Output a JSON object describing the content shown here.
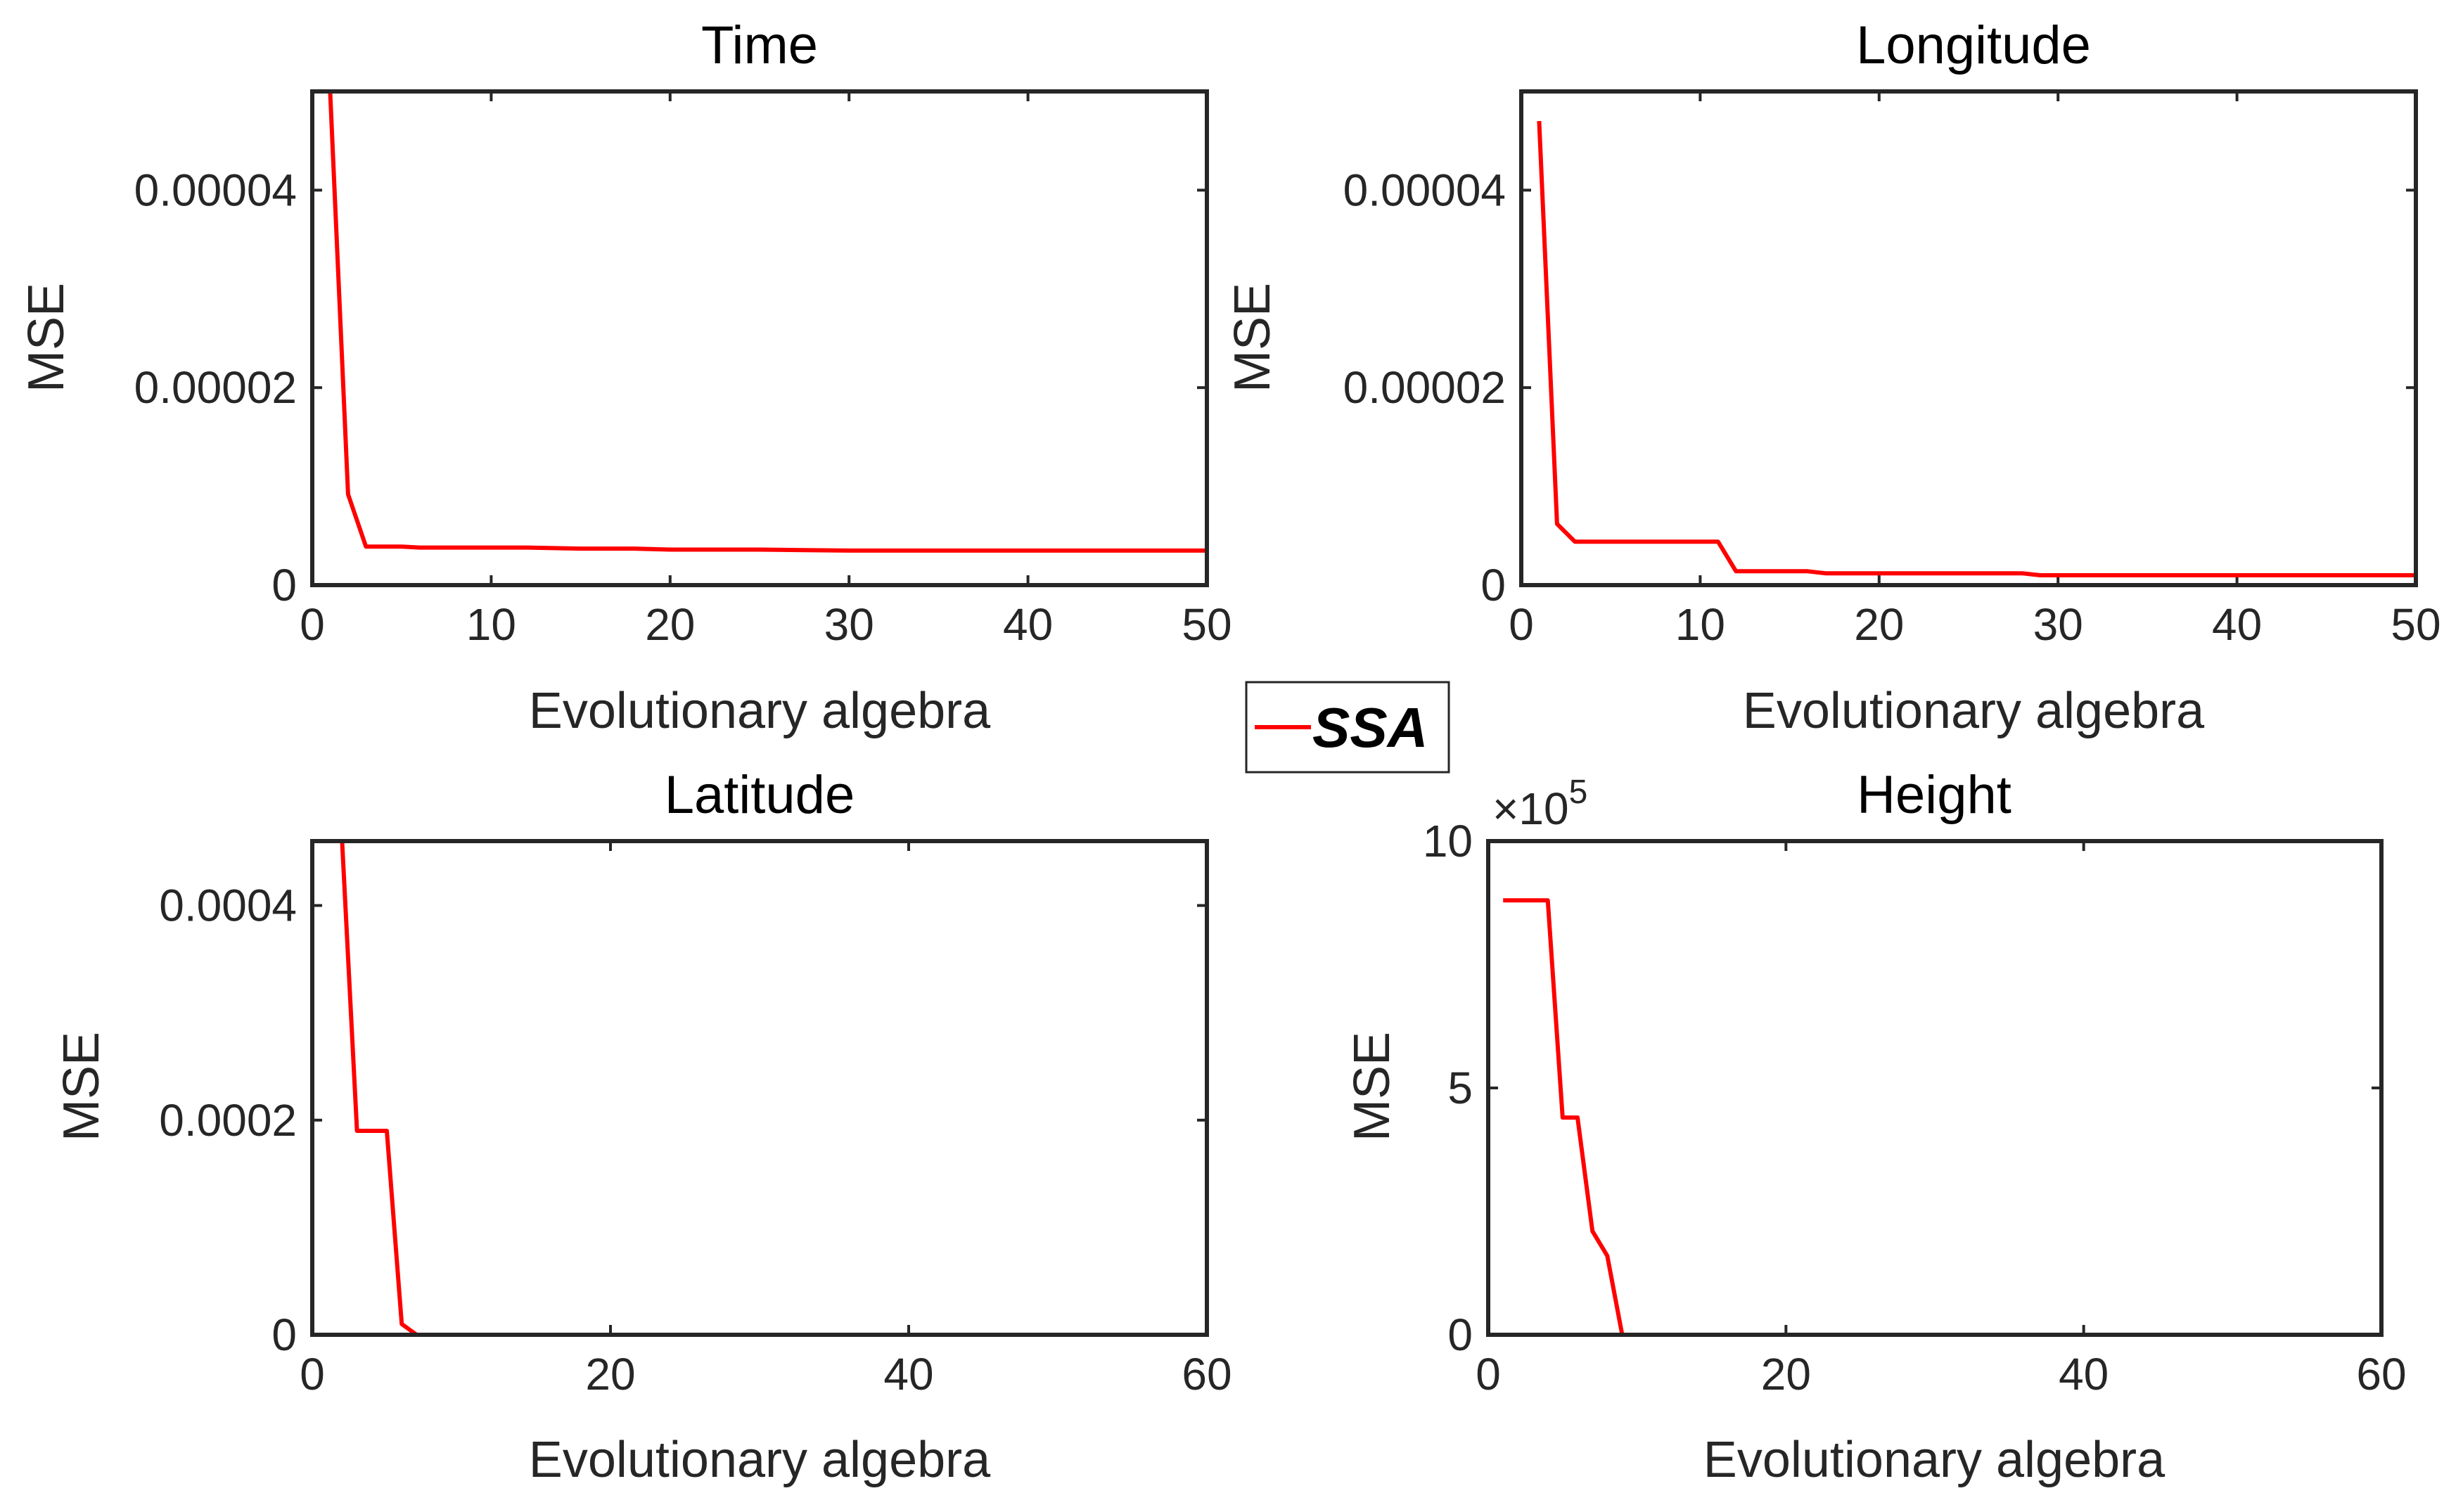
{
  "series_color": "#ff0000",
  "legend": {
    "label": "SSA"
  },
  "chart_data": [
    {
      "type": "line",
      "title": "Time",
      "xlabel": "Evolutionary algebra",
      "ylabel": "MSE",
      "xlim": [
        0,
        50
      ],
      "ylim": [
        0,
        5e-05
      ],
      "xticks": [
        0,
        10,
        20,
        30,
        40,
        50
      ],
      "xtick_labels": [
        "0",
        "10",
        "20",
        "30",
        "40",
        "50"
      ],
      "yticks": [
        0,
        2e-05,
        4e-05
      ],
      "ytick_labels": [
        "0",
        "0.00002",
        "0.00004"
      ],
      "exponent_label": "",
      "series": [
        {
          "name": "SSA",
          "x": [
            1,
            2,
            3,
            4,
            5,
            6,
            8,
            10,
            12,
            15,
            18,
            20,
            22,
            25,
            30,
            35,
            40,
            45,
            50
          ],
          "y": [
            5e-05,
            9.2e-06,
            3.9e-06,
            3.9e-06,
            3.9e-06,
            3.8e-06,
            3.8e-06,
            3.8e-06,
            3.8e-06,
            3.7e-06,
            3.7e-06,
            3.6e-06,
            3.6e-06,
            3.6e-06,
            3.5e-06,
            3.5e-06,
            3.5e-06,
            3.5e-06,
            3.5e-06
          ]
        }
      ]
    },
    {
      "type": "line",
      "title": "Longitude",
      "xlabel": "Evolutionary algebra",
      "ylabel": "MSE",
      "xlim": [
        0,
        50
      ],
      "ylim": [
        0,
        5e-05
      ],
      "xticks": [
        0,
        10,
        20,
        30,
        40,
        50
      ],
      "xtick_labels": [
        "0",
        "10",
        "20",
        "30",
        "40",
        "50"
      ],
      "yticks": [
        0,
        2e-05,
        4e-05
      ],
      "ytick_labels": [
        "0",
        "0.00002",
        "0.00004"
      ],
      "exponent_label": "",
      "series": [
        {
          "name": "SSA",
          "x": [
            1,
            2,
            3,
            4,
            6,
            8,
            10,
            11,
            12,
            14,
            16,
            17,
            20,
            25,
            28,
            29,
            30,
            35,
            40,
            45,
            50
          ],
          "y": [
            4.7e-05,
            6.2e-06,
            4.4e-06,
            4.4e-06,
            4.4e-06,
            4.4e-06,
            4.4e-06,
            4.4e-06,
            1.4e-06,
            1.4e-06,
            1.4e-06,
            1.2e-06,
            1.2e-06,
            1.2e-06,
            1.2e-06,
            1e-06,
            1e-06,
            1e-06,
            1e-06,
            1e-06,
            1e-06
          ]
        }
      ]
    },
    {
      "type": "line",
      "title": "Latitude",
      "xlabel": "Evolutionary algebra",
      "ylabel": "MSE",
      "xlim": [
        0,
        60
      ],
      "ylim": [
        0,
        0.00046
      ],
      "xticks": [
        0,
        20,
        40,
        60
      ],
      "xtick_labels": [
        "0",
        "20",
        "40",
        "60"
      ],
      "yticks": [
        0,
        0.0002,
        0.0004
      ],
      "ytick_labels": [
        "0",
        "0.0002",
        "0.0004"
      ],
      "exponent_label": "",
      "series": [
        {
          "name": "SSA",
          "x": [
            1,
            2,
            3,
            4,
            5,
            6,
            7,
            10,
            20,
            30,
            40,
            50
          ],
          "y": [
            0.00046,
            0.00046,
            0.00019,
            0.00019,
            0.00019,
            1e-05,
            0.0,
            0.0,
            0.0,
            0.0,
            0.0,
            0.0
          ]
        }
      ]
    },
    {
      "type": "line",
      "title": "Height",
      "xlabel": "Evolutionary algebra",
      "ylabel": "MSE",
      "xlim": [
        0,
        60
      ],
      "ylim": [
        0,
        10
      ],
      "xticks": [
        0,
        20,
        40,
        60
      ],
      "xtick_labels": [
        "0",
        "20",
        "40",
        "60"
      ],
      "yticks": [
        0,
        5,
        10
      ],
      "ytick_labels": [
        "0",
        "5",
        "10"
      ],
      "exponent_label": "×10",
      "exponent_power": "5",
      "series": [
        {
          "name": "SSA",
          "x": [
            1,
            2,
            3,
            4,
            5,
            6,
            7,
            8,
            9,
            10,
            20,
            30,
            40,
            50
          ],
          "y": [
            8.8,
            8.8,
            8.8,
            8.8,
            4.4,
            4.4,
            2.1,
            1.6,
            0.0,
            0.0,
            0.0,
            0.0,
            0.0,
            0.0
          ]
        }
      ]
    }
  ]
}
